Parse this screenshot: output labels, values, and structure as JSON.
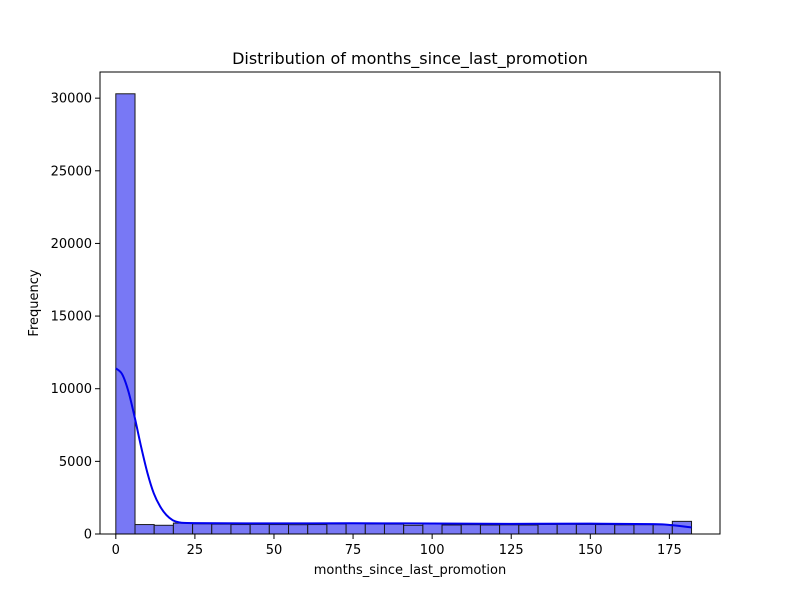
{
  "chart_data": {
    "type": "bar",
    "title": "Distribution of months_since_last_promotion",
    "xlabel": "months_since_last_promotion",
    "ylabel": "Frequency",
    "xlim": [
      -5,
      191
    ],
    "ylim": [
      0,
      31800
    ],
    "x_ticks": [
      0,
      25,
      50,
      75,
      100,
      125,
      150,
      175
    ],
    "y_ticks": [
      0,
      5000,
      10000,
      15000,
      20000,
      25000,
      30000
    ],
    "bin_edges": [
      0,
      6.07,
      12.13,
      18.2,
      24.27,
      30.33,
      36.4,
      42.47,
      48.53,
      54.6,
      60.67,
      66.73,
      72.8,
      78.87,
      84.93,
      91.0,
      97.07,
      103.13,
      109.2,
      115.27,
      121.33,
      127.4,
      133.47,
      139.53,
      145.6,
      151.67,
      157.73,
      163.8,
      169.87,
      175.93,
      182.0
    ],
    "values": [
      30300,
      650,
      600,
      750,
      700,
      680,
      650,
      660,
      650,
      640,
      650,
      690,
      720,
      690,
      680,
      600,
      720,
      620,
      640,
      620,
      630,
      620,
      660,
      670,
      660,
      650,
      630,
      640,
      640,
      870
    ],
    "kde": {
      "x": [
        0,
        2,
        4,
        6,
        8,
        10,
        12,
        14,
        16,
        18,
        20,
        25,
        50,
        75,
        100,
        125,
        150,
        170,
        176,
        182
      ],
      "y": [
        11400,
        11000,
        9800,
        8000,
        6000,
        4200,
        2800,
        1900,
        1300,
        950,
        800,
        750,
        730,
        740,
        720,
        700,
        710,
        680,
        600,
        450
      ]
    },
    "bar_color": "#7878f5",
    "bar_edge_color": "#1a1a1a",
    "kde_color": "#0000ee",
    "grid": false
  }
}
